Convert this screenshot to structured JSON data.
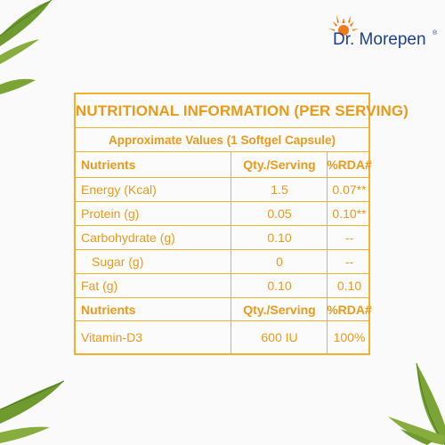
{
  "brand": {
    "name": "Dr. Morepen",
    "registered": "®"
  },
  "table": {
    "title": "NUTRITIONAL INFORMATION (PER SERVING)",
    "subtitle": "Approximate Values (1 Softgel Capsule)",
    "header1": {
      "c1": "Nutrients",
      "c2": "Qty./Serving",
      "c3": "%RDA#"
    },
    "rows1": [
      {
        "c1": "Energy (Kcal)",
        "c2": "1.5",
        "c3": "0.07**"
      },
      {
        "c1": "Protein (g)",
        "c2": "0.05",
        "c3": "0.10**"
      },
      {
        "c1": "Carbohydrate (g)",
        "c2": "0.10",
        "c3": "--"
      },
      {
        "c1": "Sugar (g)",
        "c2": "0",
        "c3": "--"
      },
      {
        "c1": "Fat (g)",
        "c2": "0.10",
        "c3": "0.10"
      }
    ],
    "header2": {
      "c1": "Nutrients",
      "c2": "Qty./Serving",
      "c3": "%RDA#"
    },
    "rows2": [
      {
        "c1": "Vitamin-D3",
        "c2": "600 IU",
        "c3": "100%"
      }
    ]
  },
  "colors": {
    "accent": "#f2b12a",
    "text": "#e99a1b",
    "brand_blue": "#1f3f91",
    "brand_orange": "#f07a1a"
  },
  "decor": [
    "bamboo-leaf-top-left",
    "bamboo-leaf-bottom-left",
    "bamboo-leaf-bottom-right"
  ]
}
